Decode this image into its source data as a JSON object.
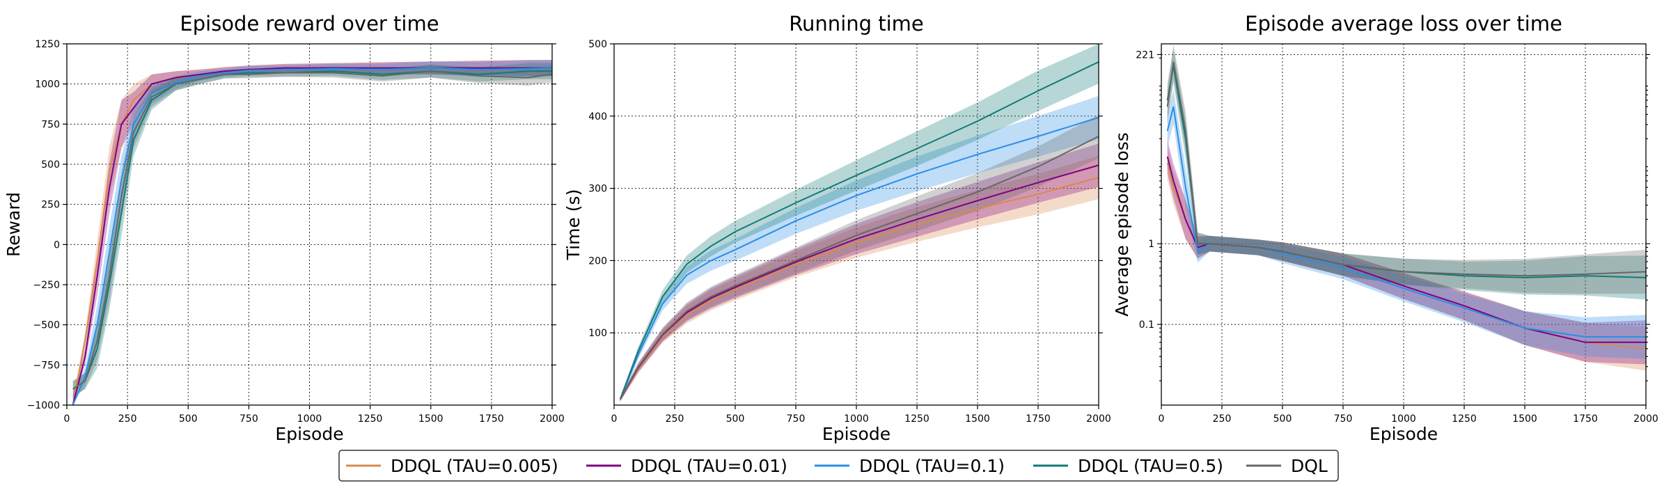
{
  "chart_data": [
    {
      "type": "line",
      "title": "Episode reward over time",
      "xlabel": "Episode",
      "ylabel": "Reward",
      "xlim": [
        0,
        2000
      ],
      "ylim": [
        -1000,
        1250
      ],
      "xticks": [
        0,
        250,
        500,
        750,
        1000,
        1250,
        1500,
        1750,
        2000
      ],
      "yticks": [
        -1000,
        -750,
        -500,
        -250,
        0,
        250,
        500,
        750,
        1000,
        1250
      ],
      "x_tick_labels": [
        "0",
        "250",
        "500",
        "750",
        "1000",
        "1250",
        "1500",
        "1750",
        "2000"
      ],
      "y_tick_labels": [
        "−1000",
        "−750",
        "−500",
        "−250",
        "0",
        "250",
        "500",
        "750",
        "1000",
        "1250"
      ],
      "series": [
        {
          "name": "DDQL (TAU=0.005)",
          "color": "#d9894c",
          "x": [
            25,
            75,
            125,
            175,
            225,
            275,
            350,
            450,
            550,
            650,
            750,
            900,
            1100,
            1300,
            1500,
            1700,
            1900,
            2000
          ],
          "y": [
            -1000,
            -600,
            -100,
            450,
            750,
            900,
            1000,
            1040,
            1060,
            1080,
            1090,
            1100,
            1100,
            1100,
            1100,
            1100,
            1100,
            1100
          ]
        },
        {
          "name": "DDQL (TAU=0.01)",
          "color": "#800080",
          "x": [
            25,
            75,
            125,
            175,
            225,
            275,
            350,
            450,
            550,
            650,
            750,
            900,
            1100,
            1300,
            1500,
            1700,
            1900,
            2000
          ],
          "y": [
            -1000,
            -700,
            -200,
            350,
            750,
            850,
            1000,
            1040,
            1060,
            1080,
            1090,
            1100,
            1100,
            1100,
            1100,
            1100,
            1100,
            1100
          ]
        },
        {
          "name": "DDQL (TAU=0.1)",
          "color": "#2a8ee6",
          "x": [
            25,
            75,
            125,
            175,
            225,
            275,
            350,
            450,
            550,
            650,
            750,
            900,
            1100,
            1300,
            1500,
            1700,
            1900,
            2000
          ],
          "y": [
            -1000,
            -820,
            -500,
            -50,
            400,
            750,
            940,
            1010,
            1050,
            1070,
            1085,
            1090,
            1095,
            1090,
            1100,
            1090,
            1095,
            1100
          ]
        },
        {
          "name": "DDQL (TAU=0.5)",
          "color": "#127a78",
          "x": [
            25,
            75,
            125,
            175,
            225,
            275,
            350,
            450,
            550,
            650,
            750,
            900,
            1100,
            1300,
            1500,
            1700,
            1900,
            2000
          ],
          "y": [
            -900,
            -850,
            -650,
            -250,
            200,
            650,
            900,
            1000,
            1030,
            1060,
            1070,
            1070,
            1080,
            1060,
            1080,
            1060,
            1080,
            1080
          ]
        },
        {
          "name": "DQL",
          "color": "#666666",
          "x": [
            25,
            75,
            125,
            175,
            225,
            275,
            350,
            450,
            550,
            650,
            750,
            900,
            1100,
            1300,
            1500,
            1700,
            1900,
            2000
          ],
          "y": [
            -900,
            -850,
            -600,
            -200,
            300,
            700,
            920,
            1000,
            1030,
            1060,
            1060,
            1070,
            1070,
            1050,
            1080,
            1050,
            1040,
            1060
          ]
        }
      ]
    },
    {
      "type": "line",
      "title": "Running time",
      "xlabel": "Episode",
      "ylabel": "Time (s)",
      "xlim": [
        0,
        2000
      ],
      "ylim": [
        0,
        500
      ],
      "xticks": [
        0,
        250,
        500,
        750,
        1000,
        1250,
        1500,
        1750,
        2000
      ],
      "yticks": [
        100,
        200,
        300,
        400,
        500
      ],
      "x_tick_labels": [
        "0",
        "250",
        "500",
        "750",
        "1000",
        "1250",
        "1500",
        "1750",
        "2000"
      ],
      "y_tick_labels": [
        "100",
        "200",
        "300",
        "400",
        "500"
      ],
      "series": [
        {
          "name": "DDQL (TAU=0.005)",
          "color": "#d9894c",
          "x": [
            25,
            100,
            200,
            300,
            400,
            500,
            750,
            1000,
            1250,
            1500,
            1750,
            2000
          ],
          "y": [
            8,
            50,
            95,
            125,
            145,
            160,
            195,
            225,
            250,
            272,
            292,
            315
          ]
        },
        {
          "name": "DDQL (TAU=0.01)",
          "color": "#800080",
          "x": [
            25,
            100,
            200,
            300,
            400,
            500,
            750,
            1000,
            1250,
            1500,
            1750,
            2000
          ],
          "y": [
            8,
            52,
            97,
            128,
            148,
            163,
            198,
            230,
            257,
            283,
            308,
            332
          ]
        },
        {
          "name": "DDQL (TAU=0.1)",
          "color": "#2a8ee6",
          "x": [
            25,
            100,
            200,
            300,
            400,
            500,
            750,
            1000,
            1250,
            1500,
            1750,
            2000
          ],
          "y": [
            8,
            70,
            140,
            180,
            200,
            215,
            255,
            290,
            320,
            347,
            372,
            398
          ]
        },
        {
          "name": "DDQL (TAU=0.5)",
          "color": "#127a78",
          "x": [
            25,
            100,
            200,
            300,
            400,
            500,
            750,
            1000,
            1250,
            1500,
            1750,
            2000
          ],
          "y": [
            8,
            75,
            150,
            195,
            220,
            240,
            280,
            318,
            355,
            393,
            435,
            475
          ]
        },
        {
          "name": "DQL",
          "color": "#666666",
          "x": [
            25,
            100,
            200,
            300,
            400,
            500,
            750,
            1000,
            1250,
            1500,
            1750,
            2000
          ],
          "y": [
            8,
            53,
            98,
            130,
            150,
            165,
            200,
            235,
            265,
            295,
            330,
            372
          ]
        }
      ]
    },
    {
      "type": "line",
      "title": "Episode average loss over time",
      "xlabel": "Episode",
      "ylabel": "Average episode loss",
      "y_scale": "log",
      "xlim": [
        0,
        2000
      ],
      "ylim": [
        0.01,
        300
      ],
      "xticks": [
        0,
        250,
        500,
        750,
        1000,
        1250,
        1500,
        1750,
        2000
      ],
      "yticks": [
        0.1,
        1,
        221
      ],
      "x_tick_labels": [
        "0",
        "250",
        "500",
        "750",
        "1000",
        "1250",
        "1500",
        "1750",
        "2000"
      ],
      "y_tick_labels": [
        "0.1",
        "1",
        "221"
      ],
      "series": [
        {
          "name": "DDQL (TAU=0.005)",
          "color": "#d9894c",
          "x": [
            25,
            50,
            100,
            150,
            200,
            300,
            400,
            500,
            750,
            1000,
            1250,
            1500,
            1750,
            2000
          ],
          "y": [
            10,
            5,
            2,
            0.9,
            1.0,
            0.95,
            0.9,
            0.8,
            0.55,
            0.3,
            0.17,
            0.09,
            0.06,
            0.05
          ]
        },
        {
          "name": "DDQL (TAU=0.01)",
          "color": "#800080",
          "x": [
            25,
            50,
            100,
            150,
            200,
            300,
            400,
            500,
            750,
            1000,
            1250,
            1500,
            1750,
            2000
          ],
          "y": [
            12,
            6,
            2,
            0.9,
            1.0,
            0.95,
            0.9,
            0.8,
            0.55,
            0.3,
            0.17,
            0.09,
            0.06,
            0.06
          ]
        },
        {
          "name": "DDQL (TAU=0.1)",
          "color": "#2a8ee6",
          "x": [
            25,
            50,
            100,
            150,
            200,
            300,
            400,
            500,
            750,
            1000,
            1250,
            1500,
            1750,
            2000
          ],
          "y": [
            25,
            50,
            5,
            0.8,
            1.0,
            0.95,
            0.9,
            0.75,
            0.5,
            0.28,
            0.16,
            0.09,
            0.07,
            0.07
          ]
        },
        {
          "name": "DDQL (TAU=0.5)",
          "color": "#127a78",
          "x": [
            25,
            50,
            100,
            150,
            200,
            300,
            400,
            500,
            750,
            1000,
            1250,
            1500,
            1750,
            2000
          ],
          "y": [
            60,
            160,
            20,
            1.0,
            1.0,
            0.95,
            0.9,
            0.8,
            0.55,
            0.45,
            0.4,
            0.38,
            0.4,
            0.38
          ]
        },
        {
          "name": "DQL",
          "color": "#666666",
          "x": [
            25,
            50,
            100,
            150,
            200,
            300,
            400,
            500,
            750,
            1000,
            1250,
            1500,
            1750,
            2000
          ],
          "y": [
            50,
            180,
            25,
            1.0,
            1.0,
            0.95,
            0.9,
            0.8,
            0.55,
            0.45,
            0.42,
            0.4,
            0.42,
            0.45
          ]
        }
      ]
    }
  ],
  "legend": {
    "placement": "bottom-center",
    "entries": [
      {
        "label": "DDQL (TAU=0.005)",
        "color": "#d9894c"
      },
      {
        "label": "DDQL (TAU=0.01)",
        "color": "#800080"
      },
      {
        "label": "DDQL (TAU=0.1)",
        "color": "#2a8ee6"
      },
      {
        "label": "DDQL (TAU=0.5)",
        "color": "#127a78"
      },
      {
        "label": "DQL",
        "color": "#666666"
      }
    ]
  }
}
